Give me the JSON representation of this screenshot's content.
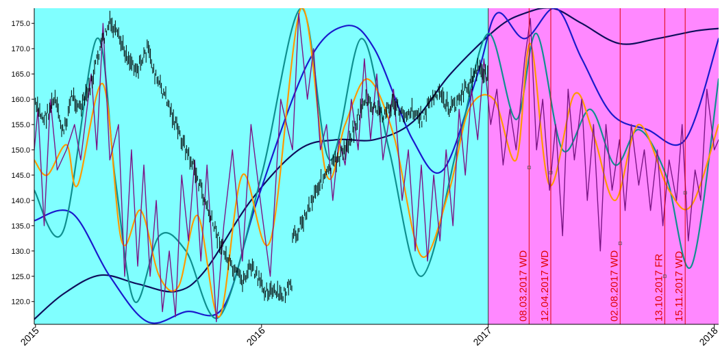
{
  "chart_data": {
    "type": "line",
    "x_axis": {
      "type": "date",
      "range": [
        "2014-12-30",
        "2018-01-08"
      ],
      "tick_labels": [
        "2015",
        "2016",
        "2017",
        "2018"
      ],
      "tick_dates": [
        "2015-01-01",
        "2016-01-01",
        "2017-01-01",
        "2018-01-01"
      ]
    },
    "y_axis": {
      "range": [
        115.5,
        178.0
      ],
      "tick_labels": [
        "120.0",
        "125.0",
        "130.0",
        "135.0",
        "140.0",
        "145.0",
        "150.0",
        "155.0",
        "160.0",
        "165.0",
        "170.0",
        "175.0"
      ],
      "tick_values": [
        120,
        125,
        130,
        135,
        140,
        145,
        150,
        155,
        160,
        165,
        170,
        175
      ]
    },
    "background_regions": [
      {
        "from": "2014-12-30",
        "to": "2017-01-01",
        "color": "#80ffff"
      },
      {
        "from": "2017-01-01",
        "to": "2018-01-08",
        "color": "#ff88ff"
      }
    ],
    "annotations": [
      {
        "label": "08.03.2017 WD",
        "date": "2017-03-08",
        "color": "#e00000",
        "marker_value": 146.5
      },
      {
        "label": "12.04.2017 WD",
        "date": "2017-04-12",
        "color": "#e00000",
        "marker_value": 145.5
      },
      {
        "label": "02.08.2017 WD",
        "date": "2017-08-02",
        "color": "#e00000",
        "marker_value": 131.5
      },
      {
        "label": "13.10.2017 FR",
        "date": "2017-10-13",
        "color": "#e00000",
        "marker_value": 125.0
      },
      {
        "label": "15.11.2017 WD",
        "date": "2017-11-15",
        "color": "#e00000",
        "marker_value": 141.5
      }
    ],
    "series": [
      {
        "color": "#0e0e5a",
        "width": 2.2,
        "points": [
          [
            "2014-12-30",
            116.5
          ],
          [
            "2015-02-15",
            121.5
          ],
          [
            "2015-04-15",
            125.2
          ],
          [
            "2015-06-15",
            123.5
          ],
          [
            "2015-08-15",
            122.0
          ],
          [
            "2015-10-01",
            126.0
          ],
          [
            "2015-12-15",
            140.0
          ],
          [
            "2016-03-01",
            150.0
          ],
          [
            "2016-05-01",
            152.0
          ],
          [
            "2016-07-01",
            152.0
          ],
          [
            "2016-09-01",
            155.5
          ],
          [
            "2016-11-01",
            165.0
          ],
          [
            "2017-01-15",
            174.0
          ],
          [
            "2017-03-01",
            177.0
          ],
          [
            "2017-04-15",
            178.0
          ],
          [
            "2017-06-01",
            175.0
          ],
          [
            "2017-08-01",
            171.0
          ],
          [
            "2017-10-01",
            172.0
          ],
          [
            "2017-12-01",
            173.5
          ],
          [
            "2018-01-08",
            174.0
          ]
        ]
      },
      {
        "color": "#1a1acc",
        "width": 2.2,
        "points": [
          [
            "2014-12-30",
            136.0
          ],
          [
            "2015-03-01",
            137.5
          ],
          [
            "2015-05-01",
            125.0
          ],
          [
            "2015-07-01",
            116.0
          ],
          [
            "2015-09-01",
            118.0
          ],
          [
            "2015-11-01",
            119.0
          ],
          [
            "2015-12-25",
            140.0
          ],
          [
            "2016-03-15",
            167.0
          ],
          [
            "2016-05-15",
            174.5
          ],
          [
            "2016-07-01",
            170.0
          ],
          [
            "2016-09-01",
            152.0
          ],
          [
            "2016-10-20",
            146.0
          ],
          [
            "2016-12-15",
            165.0
          ],
          [
            "2017-01-15",
            177.0
          ],
          [
            "2017-03-01",
            172.0
          ],
          [
            "2017-04-20",
            178.0
          ],
          [
            "2017-06-01",
            168.0
          ],
          [
            "2017-07-20",
            157.0
          ],
          [
            "2017-09-15",
            154.0
          ],
          [
            "2017-11-15",
            152.0
          ],
          [
            "2018-01-08",
            172.0
          ]
        ]
      },
      {
        "color": "#0f8f8f",
        "width": 2.2,
        "points": [
          [
            "2014-12-30",
            142.0
          ],
          [
            "2015-02-15",
            134.0
          ],
          [
            "2015-04-10",
            172.0
          ],
          [
            "2015-05-10",
            144.0
          ],
          [
            "2015-06-10",
            120.0
          ],
          [
            "2015-07-20",
            133.0
          ],
          [
            "2015-09-01",
            130.0
          ],
          [
            "2015-10-25",
            117.0
          ],
          [
            "2016-01-01",
            145.0
          ],
          [
            "2016-03-05",
            178.0
          ],
          [
            "2016-04-20",
            148.0
          ],
          [
            "2016-06-10",
            172.0
          ],
          [
            "2016-07-25",
            150.0
          ],
          [
            "2016-09-15",
            125.0
          ],
          [
            "2016-11-15",
            152.0
          ],
          [
            "2017-01-01",
            173.0
          ],
          [
            "2017-02-15",
            156.0
          ],
          [
            "2017-03-20",
            173.0
          ],
          [
            "2017-05-01",
            150.0
          ],
          [
            "2017-06-15",
            158.0
          ],
          [
            "2017-07-25",
            147.0
          ],
          [
            "2017-09-01",
            154.0
          ],
          [
            "2017-10-15",
            145.0
          ],
          [
            "2017-11-25",
            127.0
          ],
          [
            "2018-01-08",
            164.0
          ]
        ]
      },
      {
        "color": "#ff9900",
        "width": 2.2,
        "points": [
          [
            "2014-12-30",
            148.0
          ],
          [
            "2015-01-20",
            145.0
          ],
          [
            "2015-02-20",
            151.0
          ],
          [
            "2015-03-10",
            143.0
          ],
          [
            "2015-04-20",
            163.0
          ],
          [
            "2015-05-20",
            132.0
          ],
          [
            "2015-06-20",
            138.0
          ],
          [
            "2015-07-20",
            125.0
          ],
          [
            "2015-08-20",
            123.0
          ],
          [
            "2015-09-20",
            137.0
          ],
          [
            "2015-10-25",
            117.0
          ],
          [
            "2015-12-01",
            145.0
          ],
          [
            "2016-01-15",
            132.0
          ],
          [
            "2016-03-05",
            178.0
          ],
          [
            "2016-04-15",
            145.0
          ],
          [
            "2016-05-15",
            155.0
          ],
          [
            "2016-06-20",
            164.0
          ],
          [
            "2016-08-01",
            153.0
          ],
          [
            "2016-09-15",
            129.0
          ],
          [
            "2016-10-30",
            142.0
          ],
          [
            "2016-12-01",
            158.0
          ],
          [
            "2017-01-10",
            160.0
          ],
          [
            "2017-02-15",
            148.0
          ],
          [
            "2017-03-10",
            171.0
          ],
          [
            "2017-04-10",
            143.0
          ],
          [
            "2017-05-20",
            161.0
          ],
          [
            "2017-06-20",
            153.0
          ],
          [
            "2017-07-25",
            140.0
          ],
          [
            "2017-09-01",
            155.0
          ],
          [
            "2017-10-20",
            142.0
          ],
          [
            "2017-11-25",
            139.0
          ],
          [
            "2018-01-08",
            155.0
          ]
        ]
      },
      {
        "color": "#7a1585",
        "width": 1.4,
        "points": [
          [
            "2014-12-30",
            150.0
          ],
          [
            "2015-01-05",
            158.0
          ],
          [
            "2015-01-15",
            135.0
          ],
          [
            "2015-01-25",
            160.0
          ],
          [
            "2015-02-05",
            146.0
          ],
          [
            "2015-02-20",
            150.0
          ],
          [
            "2015-03-05",
            155.0
          ],
          [
            "2015-03-15",
            148.0
          ],
          [
            "2015-04-01",
            165.0
          ],
          [
            "2015-04-10",
            150.0
          ],
          [
            "2015-04-20",
            175.0
          ],
          [
            "2015-05-01",
            148.0
          ],
          [
            "2015-05-15",
            155.0
          ],
          [
            "2015-05-25",
            125.0
          ],
          [
            "2015-06-05",
            150.0
          ],
          [
            "2015-06-15",
            127.0
          ],
          [
            "2015-06-25",
            147.0
          ],
          [
            "2015-07-05",
            125.0
          ],
          [
            "2015-07-15",
            140.0
          ],
          [
            "2015-07-25",
            118.0
          ],
          [
            "2015-08-05",
            130.0
          ],
          [
            "2015-08-15",
            117.0
          ],
          [
            "2015-08-25",
            145.0
          ],
          [
            "2015-09-05",
            132.0
          ],
          [
            "2015-09-15",
            148.0
          ],
          [
            "2015-09-25",
            128.0
          ],
          [
            "2015-10-05",
            147.0
          ],
          [
            "2015-10-20",
            116.0
          ],
          [
            "2015-11-01",
            135.0
          ],
          [
            "2015-11-15",
            150.0
          ],
          [
            "2015-12-01",
            128.0
          ],
          [
            "2015-12-15",
            155.0
          ],
          [
            "2016-01-01",
            138.0
          ],
          [
            "2016-01-15",
            125.0
          ],
          [
            "2016-02-01",
            160.0
          ],
          [
            "2016-02-20",
            150.0
          ],
          [
            "2016-03-01",
            177.0
          ],
          [
            "2016-03-15",
            160.0
          ],
          [
            "2016-03-25",
            170.0
          ],
          [
            "2016-04-05",
            150.0
          ],
          [
            "2016-04-15",
            155.0
          ],
          [
            "2016-04-25",
            140.0
          ],
          [
            "2016-05-05",
            152.0
          ],
          [
            "2016-05-15",
            147.0
          ],
          [
            "2016-05-25",
            160.0
          ],
          [
            "2016-06-05",
            150.0
          ],
          [
            "2016-06-15",
            168.0
          ],
          [
            "2016-06-25",
            152.0
          ],
          [
            "2016-07-05",
            165.0
          ],
          [
            "2016-07-15",
            148.0
          ],
          [
            "2016-08-01",
            162.0
          ],
          [
            "2016-08-15",
            140.0
          ],
          [
            "2016-08-25",
            150.0
          ],
          [
            "2016-09-05",
            130.0
          ],
          [
            "2016-09-15",
            147.0
          ],
          [
            "2016-09-25",
            128.0
          ],
          [
            "2016-10-05",
            145.0
          ],
          [
            "2016-10-15",
            132.0
          ],
          [
            "2016-10-25",
            150.0
          ],
          [
            "2016-11-05",
            135.0
          ],
          [
            "2016-11-15",
            158.0
          ],
          [
            "2016-11-25",
            145.0
          ],
          [
            "2016-12-05",
            162.0
          ],
          [
            "2016-12-15",
            152.0
          ],
          [
            "2016-12-25",
            168.0
          ],
          [
            "2017-01-05",
            155.0
          ],
          [
            "2017-01-15",
            162.0
          ],
          [
            "2017-01-25",
            147.0
          ],
          [
            "2017-02-05",
            158.0
          ],
          [
            "2017-02-15",
            150.0
          ],
          [
            "2017-03-01",
            168.0
          ],
          [
            "2017-03-10",
            176.0
          ],
          [
            "2017-03-20",
            150.0
          ],
          [
            "2017-03-30",
            160.0
          ],
          [
            "2017-04-10",
            142.0
          ],
          [
            "2017-04-20",
            155.0
          ],
          [
            "2017-05-01",
            133.0
          ],
          [
            "2017-05-10",
            162.0
          ],
          [
            "2017-05-20",
            148.0
          ],
          [
            "2017-06-01",
            160.0
          ],
          [
            "2017-06-10",
            140.0
          ],
          [
            "2017-06-20",
            155.0
          ],
          [
            "2017-07-01",
            130.0
          ],
          [
            "2017-07-10",
            155.0
          ],
          [
            "2017-07-20",
            142.0
          ],
          [
            "2017-08-01",
            152.0
          ],
          [
            "2017-08-10",
            138.0
          ],
          [
            "2017-08-20",
            155.0
          ],
          [
            "2017-09-01",
            143.0
          ],
          [
            "2017-09-10",
            150.0
          ],
          [
            "2017-09-20",
            138.0
          ],
          [
            "2017-10-01",
            150.0
          ],
          [
            "2017-10-10",
            135.0
          ],
          [
            "2017-10-20",
            148.0
          ],
          [
            "2017-11-01",
            140.0
          ],
          [
            "2017-11-10",
            155.0
          ],
          [
            "2017-11-20",
            132.0
          ],
          [
            "2017-12-01",
            146.0
          ],
          [
            "2017-12-10",
            140.0
          ],
          [
            "2017-12-20",
            162.0
          ],
          [
            "2018-01-01",
            150.0
          ],
          [
            "2018-01-08",
            152.0
          ]
        ]
      },
      {
        "color": "#000000",
        "width": 1.0,
        "end_date": "2016-02-20",
        "points": [
          [
            "2014-12-30",
            159.0
          ],
          [
            "2015-01-15",
            156.0
          ],
          [
            "2015-02-01",
            160.0
          ],
          [
            "2015-02-15",
            153.0
          ],
          [
            "2015-03-01",
            161.0
          ],
          [
            "2015-03-15",
            158.0
          ],
          [
            "2015-04-01",
            163.0
          ],
          [
            "2015-04-15",
            170.0
          ],
          [
            "2015-05-01",
            175.0
          ],
          [
            "2015-05-15",
            172.0
          ],
          [
            "2015-06-01",
            168.0
          ],
          [
            "2015-06-15",
            166.0
          ],
          [
            "2015-07-01",
            170.0
          ],
          [
            "2015-07-15",
            164.0
          ],
          [
            "2015-08-01",
            160.0
          ],
          [
            "2015-08-15",
            155.0
          ],
          [
            "2015-09-01",
            150.0
          ],
          [
            "2015-09-15",
            146.0
          ],
          [
            "2015-10-01",
            140.0
          ],
          [
            "2015-10-15",
            135.0
          ],
          [
            "2015-11-01",
            130.0
          ],
          [
            "2015-11-15",
            126.0
          ],
          [
            "2015-12-01",
            124.0
          ],
          [
            "2015-12-15",
            127.0
          ],
          [
            "2016-01-01",
            123.0
          ],
          [
            "2016-01-15",
            122.0
          ],
          [
            "2016-02-01",
            121.0
          ],
          [
            "2016-02-20",
            123.0
          ]
        ]
      },
      {
        "color": "#000000",
        "width": 1.0,
        "start_date": "2016-02-20",
        "end_date": "2017-01-01",
        "points": [
          [
            "2016-02-20",
            132.0
          ],
          [
            "2016-03-15",
            138.0
          ],
          [
            "2016-04-01",
            143.0
          ],
          [
            "2016-04-15",
            145.0
          ],
          [
            "2016-05-01",
            148.0
          ],
          [
            "2016-05-15",
            150.0
          ],
          [
            "2016-06-01",
            155.0
          ],
          [
            "2016-06-15",
            160.0
          ],
          [
            "2016-07-01",
            158.0
          ],
          [
            "2016-07-15",
            157.0
          ],
          [
            "2016-08-01",
            159.0
          ],
          [
            "2016-08-15",
            157.0
          ],
          [
            "2016-09-01",
            158.0
          ],
          [
            "2016-09-15",
            156.0
          ],
          [
            "2016-10-01",
            160.0
          ],
          [
            "2016-10-15",
            161.0
          ],
          [
            "2016-11-01",
            158.0
          ],
          [
            "2016-11-15",
            160.0
          ],
          [
            "2016-12-01",
            163.0
          ],
          [
            "2016-12-15",
            166.0
          ],
          [
            "2017-01-01",
            165.0
          ]
        ]
      }
    ],
    "grid": false,
    "legend": "none"
  }
}
